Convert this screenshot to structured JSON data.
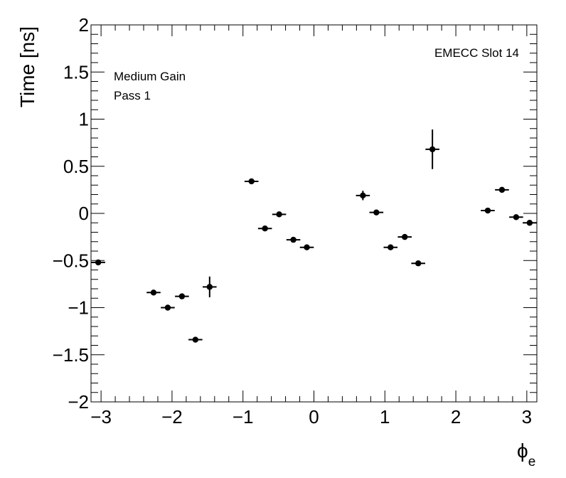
{
  "chart_data": {
    "type": "scatter",
    "title": "",
    "xlabel": "ϕ",
    "xlabel_sub": "e",
    "ylabel": "Time [ns]",
    "xlim": [
      -3.1416,
      3.1416
    ],
    "ylim": [
      -2,
      2
    ],
    "xticks": [
      -3,
      -2,
      -1,
      0,
      1,
      2,
      3
    ],
    "xtick_labels": [
      "−3",
      "−2",
      "−1",
      "0",
      "1",
      "2",
      "3"
    ],
    "yticks": [
      -2,
      -1.5,
      -1,
      -0.5,
      0,
      0.5,
      1,
      1.5,
      2
    ],
    "ytick_labels": [
      "−2",
      "−1.5",
      "−1",
      "−0.5",
      "0",
      "0.5",
      "1",
      "1.5",
      "2"
    ],
    "grid": false,
    "legend": "none",
    "marker_color": "#000000",
    "annotations": {
      "label_1": "Medium Gain",
      "label_2": "Pass 1",
      "label_3": "EMECC Slot 14"
    },
    "series": [
      {
        "x": [
          -3.04,
          -2.26,
          -2.06,
          -1.86,
          -1.67,
          -1.47,
          -0.88,
          -0.69,
          -0.49,
          -0.29,
          -0.1,
          0.69,
          0.88,
          1.08,
          1.28,
          1.47,
          1.67,
          2.45,
          2.65,
          2.85,
          3.04
        ],
        "y": [
          -0.52,
          -0.84,
          -1.0,
          -0.88,
          -1.34,
          -0.78,
          0.34,
          -0.16,
          -0.01,
          -0.28,
          -0.36,
          0.19,
          0.01,
          -0.36,
          -0.25,
          -0.53,
          0.68,
          0.03,
          0.25,
          -0.04,
          -0.1
        ],
        "yerr": [
          0.02,
          0.02,
          0.02,
          0.02,
          0.02,
          0.11,
          0.03,
          0.02,
          0.02,
          0.02,
          0.02,
          0.05,
          0.02,
          0.02,
          0.02,
          0.02,
          0.21,
          0.02,
          0.02,
          0.02,
          0.02
        ],
        "xerr": 0.098
      }
    ]
  }
}
